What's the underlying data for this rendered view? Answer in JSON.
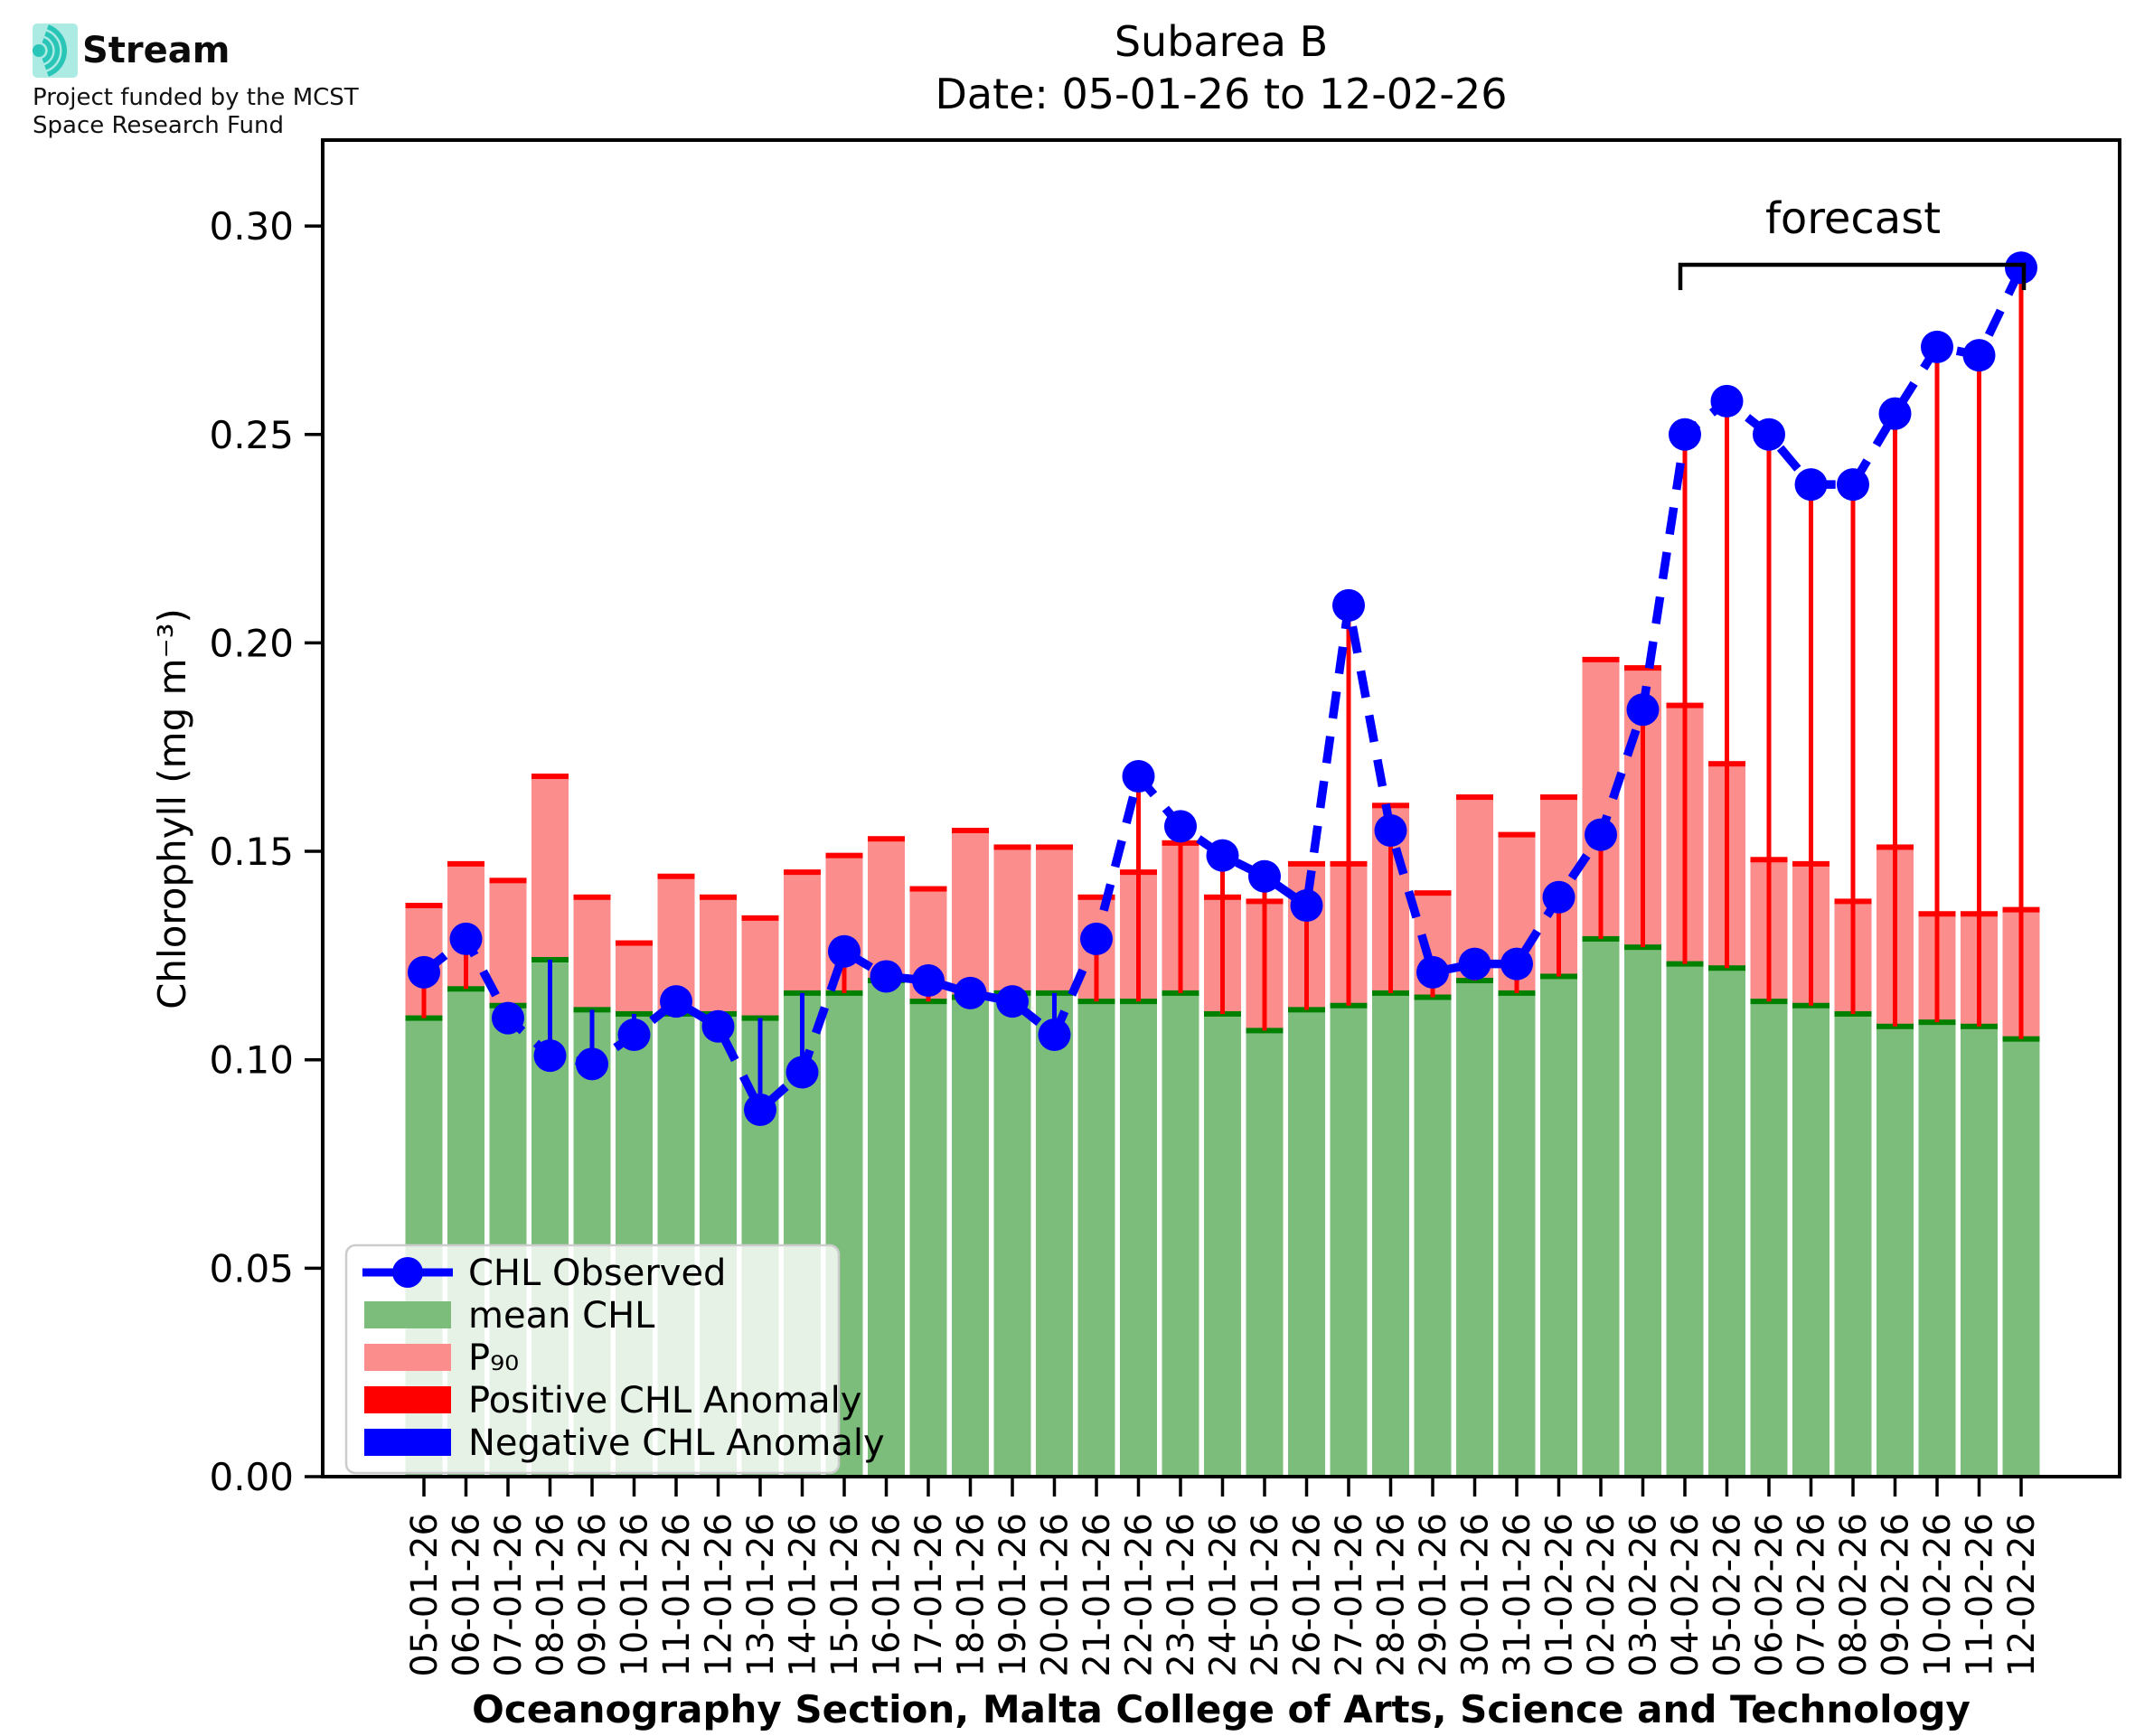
{
  "header": {
    "logo_title": "Stream",
    "logo_subtitle_line1": "Project funded by the MCST",
    "logo_subtitle_line2": "Space Research Fund"
  },
  "chart_data": {
    "type": "bar",
    "title": "Subarea B",
    "subtitle": "Date: 05-01-26 to 12-02-26",
    "xlabel": "Oceanography Section, Malta College of Arts, Science and Technology",
    "ylabel": "Chlorophyll (mg m⁻³)",
    "ylim": [
      0,
      0.32
    ],
    "yticks": [
      "0.00",
      "0.05",
      "0.10",
      "0.15",
      "0.20",
      "0.25",
      "0.30"
    ],
    "grid": false,
    "legend_position": "lower left",
    "categories": [
      "05-01-26",
      "06-01-26",
      "07-01-26",
      "08-01-26",
      "09-01-26",
      "10-01-26",
      "11-01-26",
      "12-01-26",
      "13-01-26",
      "14-01-26",
      "15-01-26",
      "16-01-26",
      "17-01-26",
      "18-01-26",
      "19-01-26",
      "20-01-26",
      "21-01-26",
      "22-01-26",
      "23-01-26",
      "24-01-26",
      "25-01-26",
      "26-01-26",
      "27-01-26",
      "28-01-26",
      "29-01-26",
      "30-01-26",
      "31-01-26",
      "01-02-26",
      "02-02-26",
      "03-02-26",
      "04-02-26",
      "05-02-26",
      "06-02-26",
      "07-02-26",
      "08-02-26",
      "09-02-26",
      "10-02-26",
      "11-02-26",
      "12-02-26"
    ],
    "series": [
      {
        "name": "CHL Observed",
        "type": "line",
        "color": "#0000ff",
        "values": [
          0.121,
          0.129,
          0.11,
          0.101,
          0.099,
          0.106,
          0.114,
          0.108,
          0.088,
          0.097,
          0.126,
          0.12,
          0.119,
          0.116,
          0.114,
          0.106,
          0.129,
          0.168,
          0.156,
          0.149,
          0.144,
          0.137,
          0.209,
          0.155,
          0.121,
          0.123,
          0.123,
          0.139,
          0.154,
          0.184,
          0.25,
          0.258,
          0.25,
          0.238,
          0.238,
          0.255,
          0.271,
          0.269,
          0.29
        ]
      },
      {
        "name": "mean CHL",
        "type": "bar",
        "color": "#7cbd7c",
        "edge_color": "#008000",
        "values": [
          0.11,
          0.117,
          0.113,
          0.124,
          0.112,
          0.111,
          0.111,
          0.111,
          0.11,
          0.116,
          0.116,
          0.119,
          0.114,
          0.115,
          0.116,
          0.116,
          0.114,
          0.114,
          0.116,
          0.111,
          0.107,
          0.112,
          0.113,
          0.116,
          0.115,
          0.119,
          0.116,
          0.12,
          0.129,
          0.127,
          0.123,
          0.122,
          0.114,
          0.113,
          0.111,
          0.108,
          0.109,
          0.108,
          0.105
        ]
      },
      {
        "name": "P₉₀",
        "type": "bar",
        "color": "#fb8d8d",
        "edge_color": "#ff0000",
        "values": [
          0.137,
          0.147,
          0.143,
          0.168,
          0.139,
          0.128,
          0.144,
          0.139,
          0.134,
          0.145,
          0.149,
          0.153,
          0.141,
          0.155,
          0.151,
          0.151,
          0.139,
          0.145,
          0.152,
          0.139,
          0.138,
          0.147,
          0.147,
          0.161,
          0.14,
          0.163,
          0.154,
          0.163,
          0.196,
          0.194,
          0.185,
          0.171,
          0.148,
          0.147,
          0.138,
          0.151,
          0.135,
          0.135,
          0.136
        ]
      }
    ],
    "anomaly": {
      "positive_color": "#ff0000",
      "negative_color": "#0000ff"
    },
    "annotation": {
      "label": "forecast",
      "start_category": "04-02-26",
      "end_category": "12-02-26"
    },
    "legend": [
      {
        "label": "CHL Observed",
        "swatch": "line-marker",
        "color": "#0000ff"
      },
      {
        "label": "mean CHL",
        "swatch": "patch",
        "color": "#7cbd7c"
      },
      {
        "label": "P₉₀",
        "swatch": "patch",
        "color": "#fb8d8d"
      },
      {
        "label": "Positive CHL Anomaly",
        "swatch": "patch",
        "color": "#ff0000"
      },
      {
        "label": "Negative CHL Anomaly",
        "swatch": "patch",
        "color": "#0000ff"
      }
    ],
    "colors": {
      "logo_teal": "#29c5b6",
      "logo_bg": "#aceae4"
    }
  }
}
